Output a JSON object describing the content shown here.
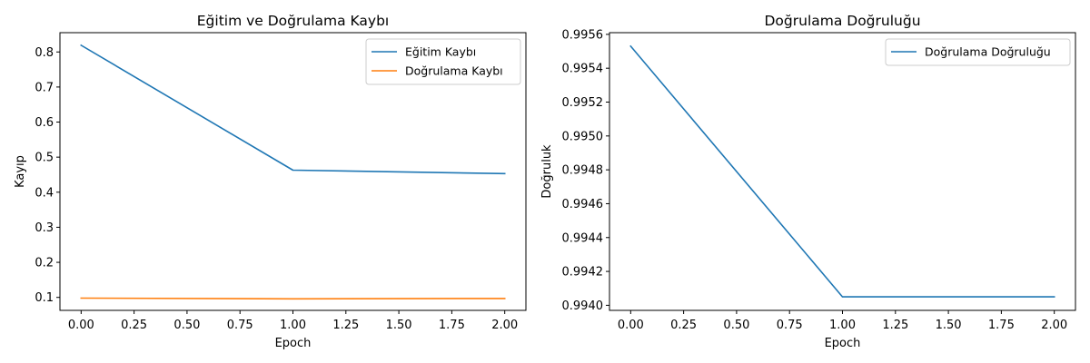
{
  "chart_data": [
    {
      "type": "line",
      "title": "Eğitim ve Doğrulama Kaybı",
      "xlabel": "Epoch",
      "ylabel": "Kayıp",
      "xlim": [
        -0.1,
        2.1
      ],
      "ylim": [
        0.063,
        0.855
      ],
      "xticks": [
        0.0,
        0.25,
        0.5,
        0.75,
        1.0,
        1.25,
        1.5,
        1.75,
        2.0
      ],
      "xtick_labels": [
        "0.00",
        "0.25",
        "0.50",
        "0.75",
        "1.00",
        "1.25",
        "1.50",
        "1.75",
        "2.00"
      ],
      "yticks": [
        0.1,
        0.2,
        0.3,
        0.4,
        0.5,
        0.6,
        0.7,
        0.8
      ],
      "ytick_labels": [
        "0.1",
        "0.2",
        "0.3",
        "0.4",
        "0.5",
        "0.6",
        "0.7",
        "0.8"
      ],
      "legend": "top-right",
      "grid": false,
      "series": [
        {
          "name": "Eğitim Kaybı",
          "color": "#1f77b4",
          "x": [
            0,
            1,
            2
          ],
          "y": [
            0.819,
            0.463,
            0.453
          ]
        },
        {
          "name": "Doğrulama Kaybı",
          "color": "#ff7f0e",
          "x": [
            0,
            1,
            2
          ],
          "y": [
            0.098,
            0.096,
            0.097
          ]
        }
      ]
    },
    {
      "type": "line",
      "title": "Doğrulama Doğruluğu",
      "xlabel": "Epoch",
      "ylabel": "Doğruluk",
      "xlim": [
        -0.1,
        2.1
      ],
      "ylim": [
        0.99397,
        0.99561
      ],
      "xticks": [
        0.0,
        0.25,
        0.5,
        0.75,
        1.0,
        1.25,
        1.5,
        1.75,
        2.0
      ],
      "xtick_labels": [
        "0.00",
        "0.25",
        "0.50",
        "0.75",
        "1.00",
        "1.25",
        "1.50",
        "1.75",
        "2.00"
      ],
      "yticks": [
        0.994,
        0.9942,
        0.9944,
        0.9946,
        0.9948,
        0.995,
        0.9952,
        0.9954,
        0.9956
      ],
      "ytick_labels": [
        "0.9940",
        "0.9942",
        "0.9944",
        "0.9946",
        "0.9948",
        "0.9950",
        "0.9952",
        "0.9954",
        "0.9956"
      ],
      "legend": "top-right",
      "grid": false,
      "series": [
        {
          "name": "Doğrulama Doğruluğu",
          "color": "#1f77b4",
          "x": [
            0,
            1,
            2
          ],
          "y": [
            0.99553,
            0.99405,
            0.99405
          ]
        }
      ]
    }
  ]
}
